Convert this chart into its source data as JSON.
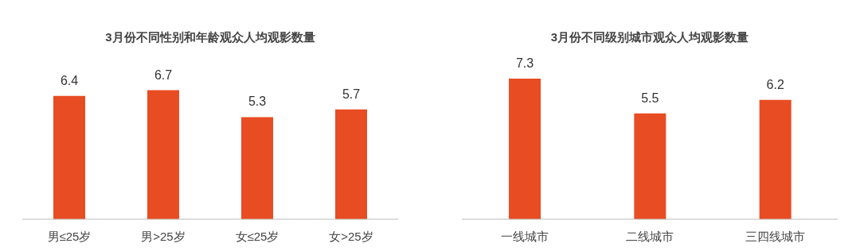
{
  "chart_data": [
    {
      "type": "bar",
      "title": "3月份不同性别和年龄观众人均观影数量",
      "categories": [
        "男≤25岁",
        "男>25岁",
        "女≤25岁",
        "女>25岁"
      ],
      "values": [
        6.4,
        6.7,
        5.3,
        5.7
      ],
      "color": "#e84c22",
      "data_labels": true
    },
    {
      "type": "bar",
      "title": "3月份不同级别城市观众人均观影数量",
      "categories": [
        "一线城市",
        "二线城市",
        "三四线城市"
      ],
      "values": [
        7.3,
        5.5,
        6.2
      ],
      "color": "#e84c22",
      "data_labels": true
    }
  ]
}
